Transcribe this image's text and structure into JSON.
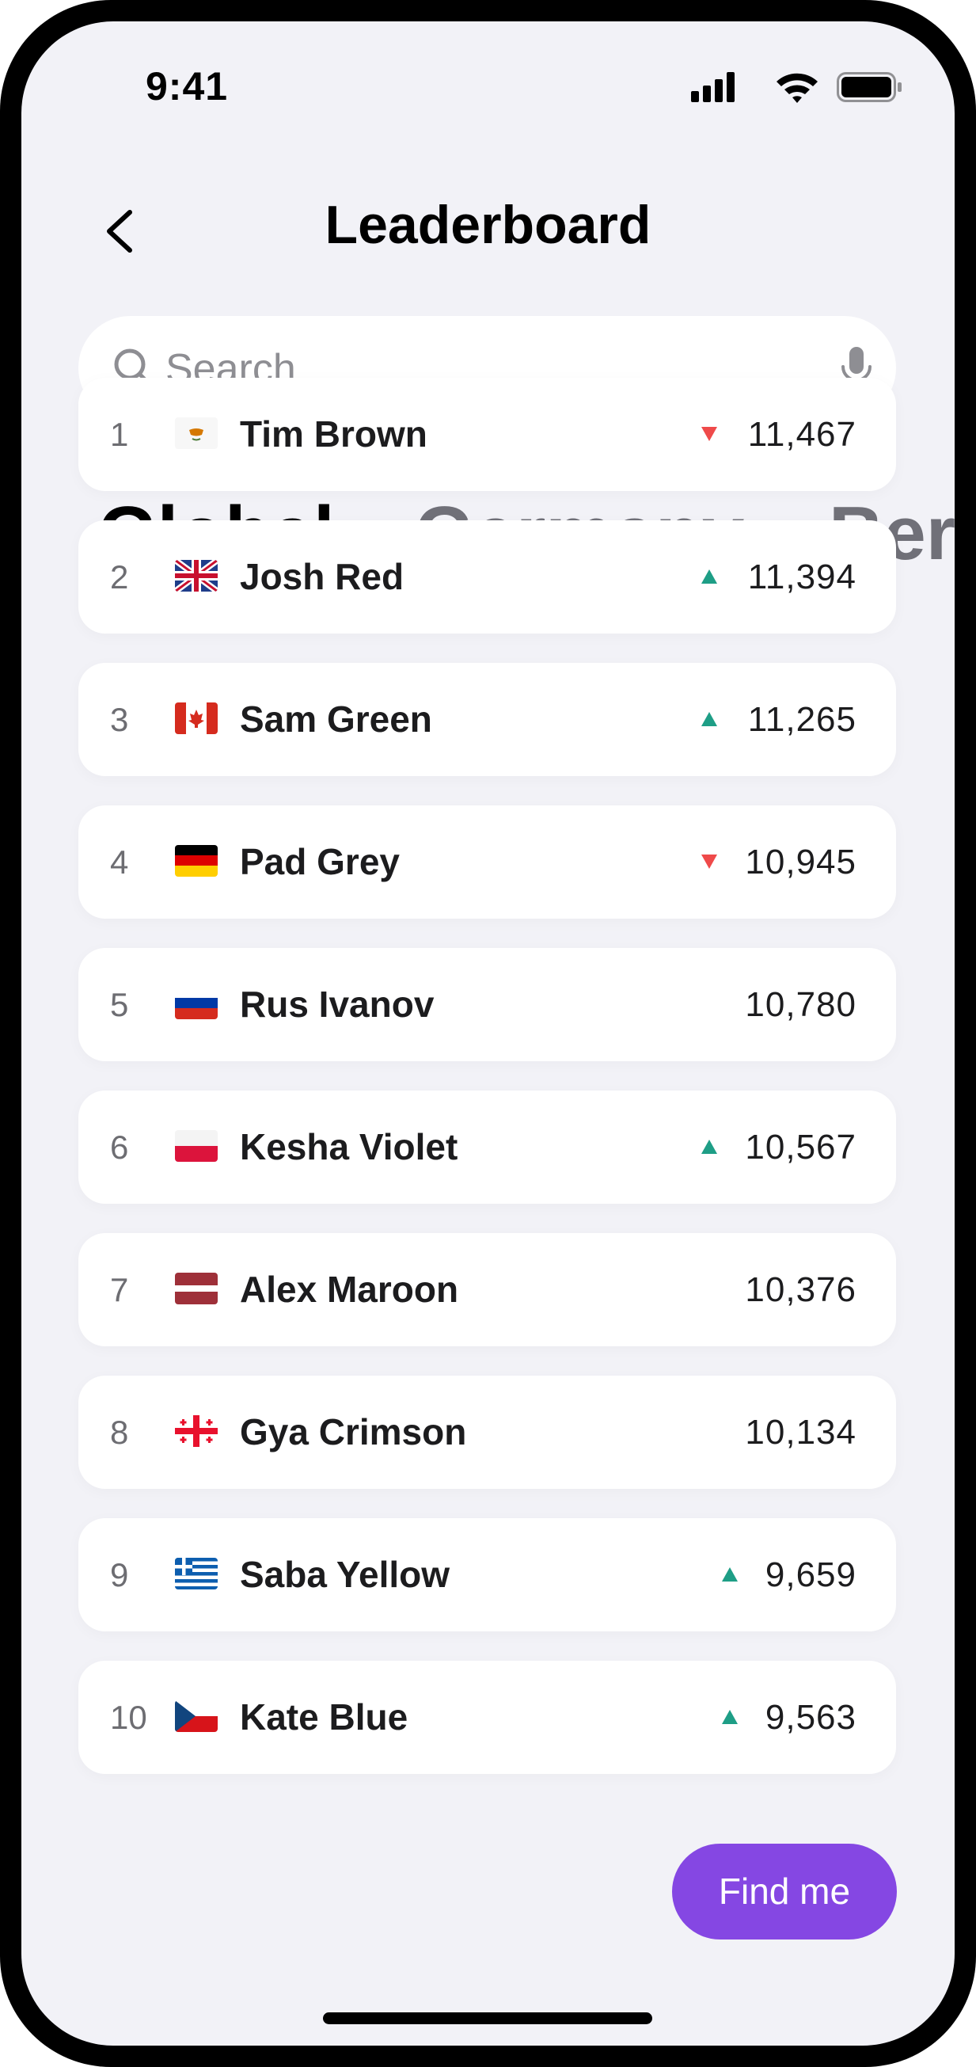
{
  "status_bar": {
    "time": "9:41"
  },
  "header": {
    "title": "Leaderboard"
  },
  "search": {
    "placeholder": "Search"
  },
  "tabs": [
    {
      "label": "Global",
      "active": true
    },
    {
      "label": "Germany",
      "active": false
    },
    {
      "label": "Berlin",
      "active": false
    }
  ],
  "leaderboard": [
    {
      "rank": "1",
      "flag": "cyprus-flag",
      "name": "Tim Brown",
      "trend": "down",
      "score": "11,467"
    },
    {
      "rank": "2",
      "flag": "uk-flag",
      "name": "Josh Red",
      "trend": "up",
      "score": "11,394"
    },
    {
      "rank": "3",
      "flag": "canada-flag",
      "name": "Sam Green",
      "trend": "up",
      "score": "11,265"
    },
    {
      "rank": "4",
      "flag": "germany-flag",
      "name": "Pad Grey",
      "trend": "down",
      "score": "10,945"
    },
    {
      "rank": "5",
      "flag": "russia-flag",
      "name": "Rus Ivanov",
      "trend": "none",
      "score": "10,780"
    },
    {
      "rank": "6",
      "flag": "poland-flag",
      "name": "Kesha Violet",
      "trend": "up",
      "score": "10,567"
    },
    {
      "rank": "7",
      "flag": "latvia-flag",
      "name": "Alex Maroon",
      "trend": "none",
      "score": "10,376"
    },
    {
      "rank": "8",
      "flag": "georgia-flag",
      "name": "Gya Crimson",
      "trend": "none",
      "score": "10,134"
    },
    {
      "rank": "9",
      "flag": "greece-flag",
      "name": "Saba Yellow",
      "trend": "up",
      "score": "9,659"
    },
    {
      "rank": "10",
      "flag": "czech-flag",
      "name": "Kate Blue",
      "trend": "up",
      "score": "9,563"
    }
  ],
  "find_me": {
    "label": "Find me"
  },
  "colors": {
    "accent": "#8547e3",
    "trend_up": "#1e9e86",
    "trend_down": "#ef4a4a"
  }
}
